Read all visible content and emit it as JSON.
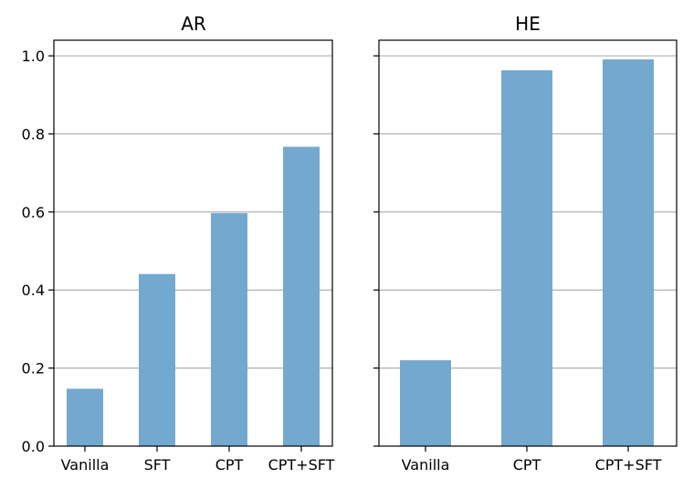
{
  "chart_data": [
    {
      "type": "bar",
      "title": "AR",
      "categories": [
        "Vanilla",
        "SFT",
        "CPT",
        "CPT+SFT"
      ],
      "values": [
        0.147,
        0.441,
        0.597,
        0.767
      ],
      "xlabel": "",
      "ylabel": "",
      "ylim": [
        0,
        1.04
      ],
      "yticks": [
        "0.0",
        "0.2",
        "0.4",
        "0.6",
        "0.8",
        "1.0"
      ],
      "grid": "y",
      "color": "#74a9cf"
    },
    {
      "type": "bar",
      "title": "HE",
      "categories": [
        "Vanilla",
        "CPT",
        "CPT+SFT"
      ],
      "values": [
        0.22,
        0.963,
        0.991
      ],
      "xlabel": "",
      "ylabel": "",
      "ylim": [
        0,
        1.04
      ],
      "yticks": [],
      "grid": "y",
      "color": "#74a9cf"
    }
  ]
}
